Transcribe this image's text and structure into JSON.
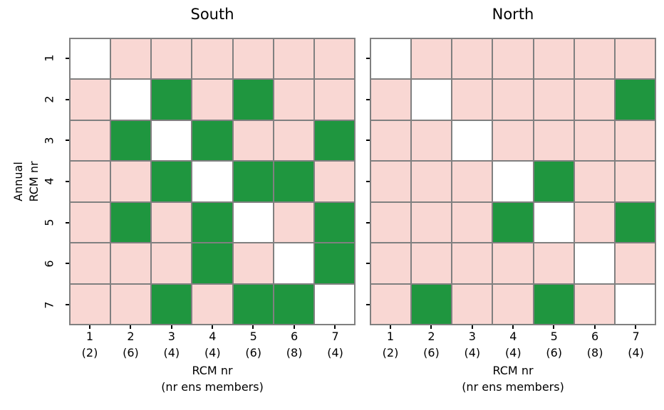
{
  "colors": {
    "white": "#ffffff",
    "pink": "#f9d7d3",
    "green": "#1f963f",
    "grid_line": "#808080",
    "tick": "#000000",
    "text": "#000000",
    "background": "#ffffff"
  },
  "x_axis": {
    "ticks": [
      {
        "num": "1",
        "count": "(2)"
      },
      {
        "num": "2",
        "count": "(6)"
      },
      {
        "num": "3",
        "count": "(4)"
      },
      {
        "num": "4",
        "count": "(4)"
      },
      {
        "num": "5",
        "count": "(6)"
      },
      {
        "num": "6",
        "count": "(8)"
      },
      {
        "num": "7",
        "count": "(4)"
      }
    ],
    "label_line1": "RCM nr",
    "label_line2": "(nr ens members)"
  },
  "y_axis": {
    "ticks": [
      "1",
      "2",
      "3",
      "4",
      "5",
      "6",
      "7"
    ],
    "label_line1": "Annual",
    "label_line2": "RCM nr"
  },
  "chart_data": [
    {
      "type": "heatmap",
      "title": "South",
      "xlabel": "RCM nr (nr ens members)",
      "ylabel": "Annual RCM nr",
      "x_categories": [
        "1 (2)",
        "2 (6)",
        "3 (4)",
        "4 (4)",
        "5 (6)",
        "6 (8)",
        "7 (4)"
      ],
      "y_categories": [
        "1",
        "2",
        "3",
        "4",
        "5",
        "6",
        "7"
      ],
      "values": [
        [
          "white",
          "pink",
          "pink",
          "pink",
          "pink",
          "pink",
          "pink"
        ],
        [
          "pink",
          "white",
          "green",
          "pink",
          "green",
          "pink",
          "pink"
        ],
        [
          "pink",
          "green",
          "white",
          "green",
          "pink",
          "pink",
          "green"
        ],
        [
          "pink",
          "pink",
          "green",
          "white",
          "green",
          "green",
          "pink"
        ],
        [
          "pink",
          "green",
          "pink",
          "green",
          "white",
          "pink",
          "green"
        ],
        [
          "pink",
          "pink",
          "pink",
          "green",
          "pink",
          "white",
          "green"
        ],
        [
          "pink",
          "pink",
          "green",
          "pink",
          "green",
          "green",
          "white"
        ]
      ]
    },
    {
      "type": "heatmap",
      "title": "North",
      "xlabel": "RCM nr (nr ens members)",
      "ylabel": "Annual RCM nr",
      "x_categories": [
        "1 (2)",
        "2 (6)",
        "3 (4)",
        "4 (4)",
        "5 (6)",
        "6 (8)",
        "7 (4)"
      ],
      "y_categories": [
        "1",
        "2",
        "3",
        "4",
        "5",
        "6",
        "7"
      ],
      "values": [
        [
          "white",
          "pink",
          "pink",
          "pink",
          "pink",
          "pink",
          "pink"
        ],
        [
          "pink",
          "white",
          "pink",
          "pink",
          "pink",
          "pink",
          "green"
        ],
        [
          "pink",
          "pink",
          "white",
          "pink",
          "pink",
          "pink",
          "pink"
        ],
        [
          "pink",
          "pink",
          "pink",
          "white",
          "green",
          "pink",
          "pink"
        ],
        [
          "pink",
          "pink",
          "pink",
          "green",
          "white",
          "pink",
          "green"
        ],
        [
          "pink",
          "pink",
          "pink",
          "pink",
          "pink",
          "white",
          "pink"
        ],
        [
          "pink",
          "green",
          "pink",
          "pink",
          "green",
          "pink",
          "white"
        ]
      ]
    }
  ]
}
